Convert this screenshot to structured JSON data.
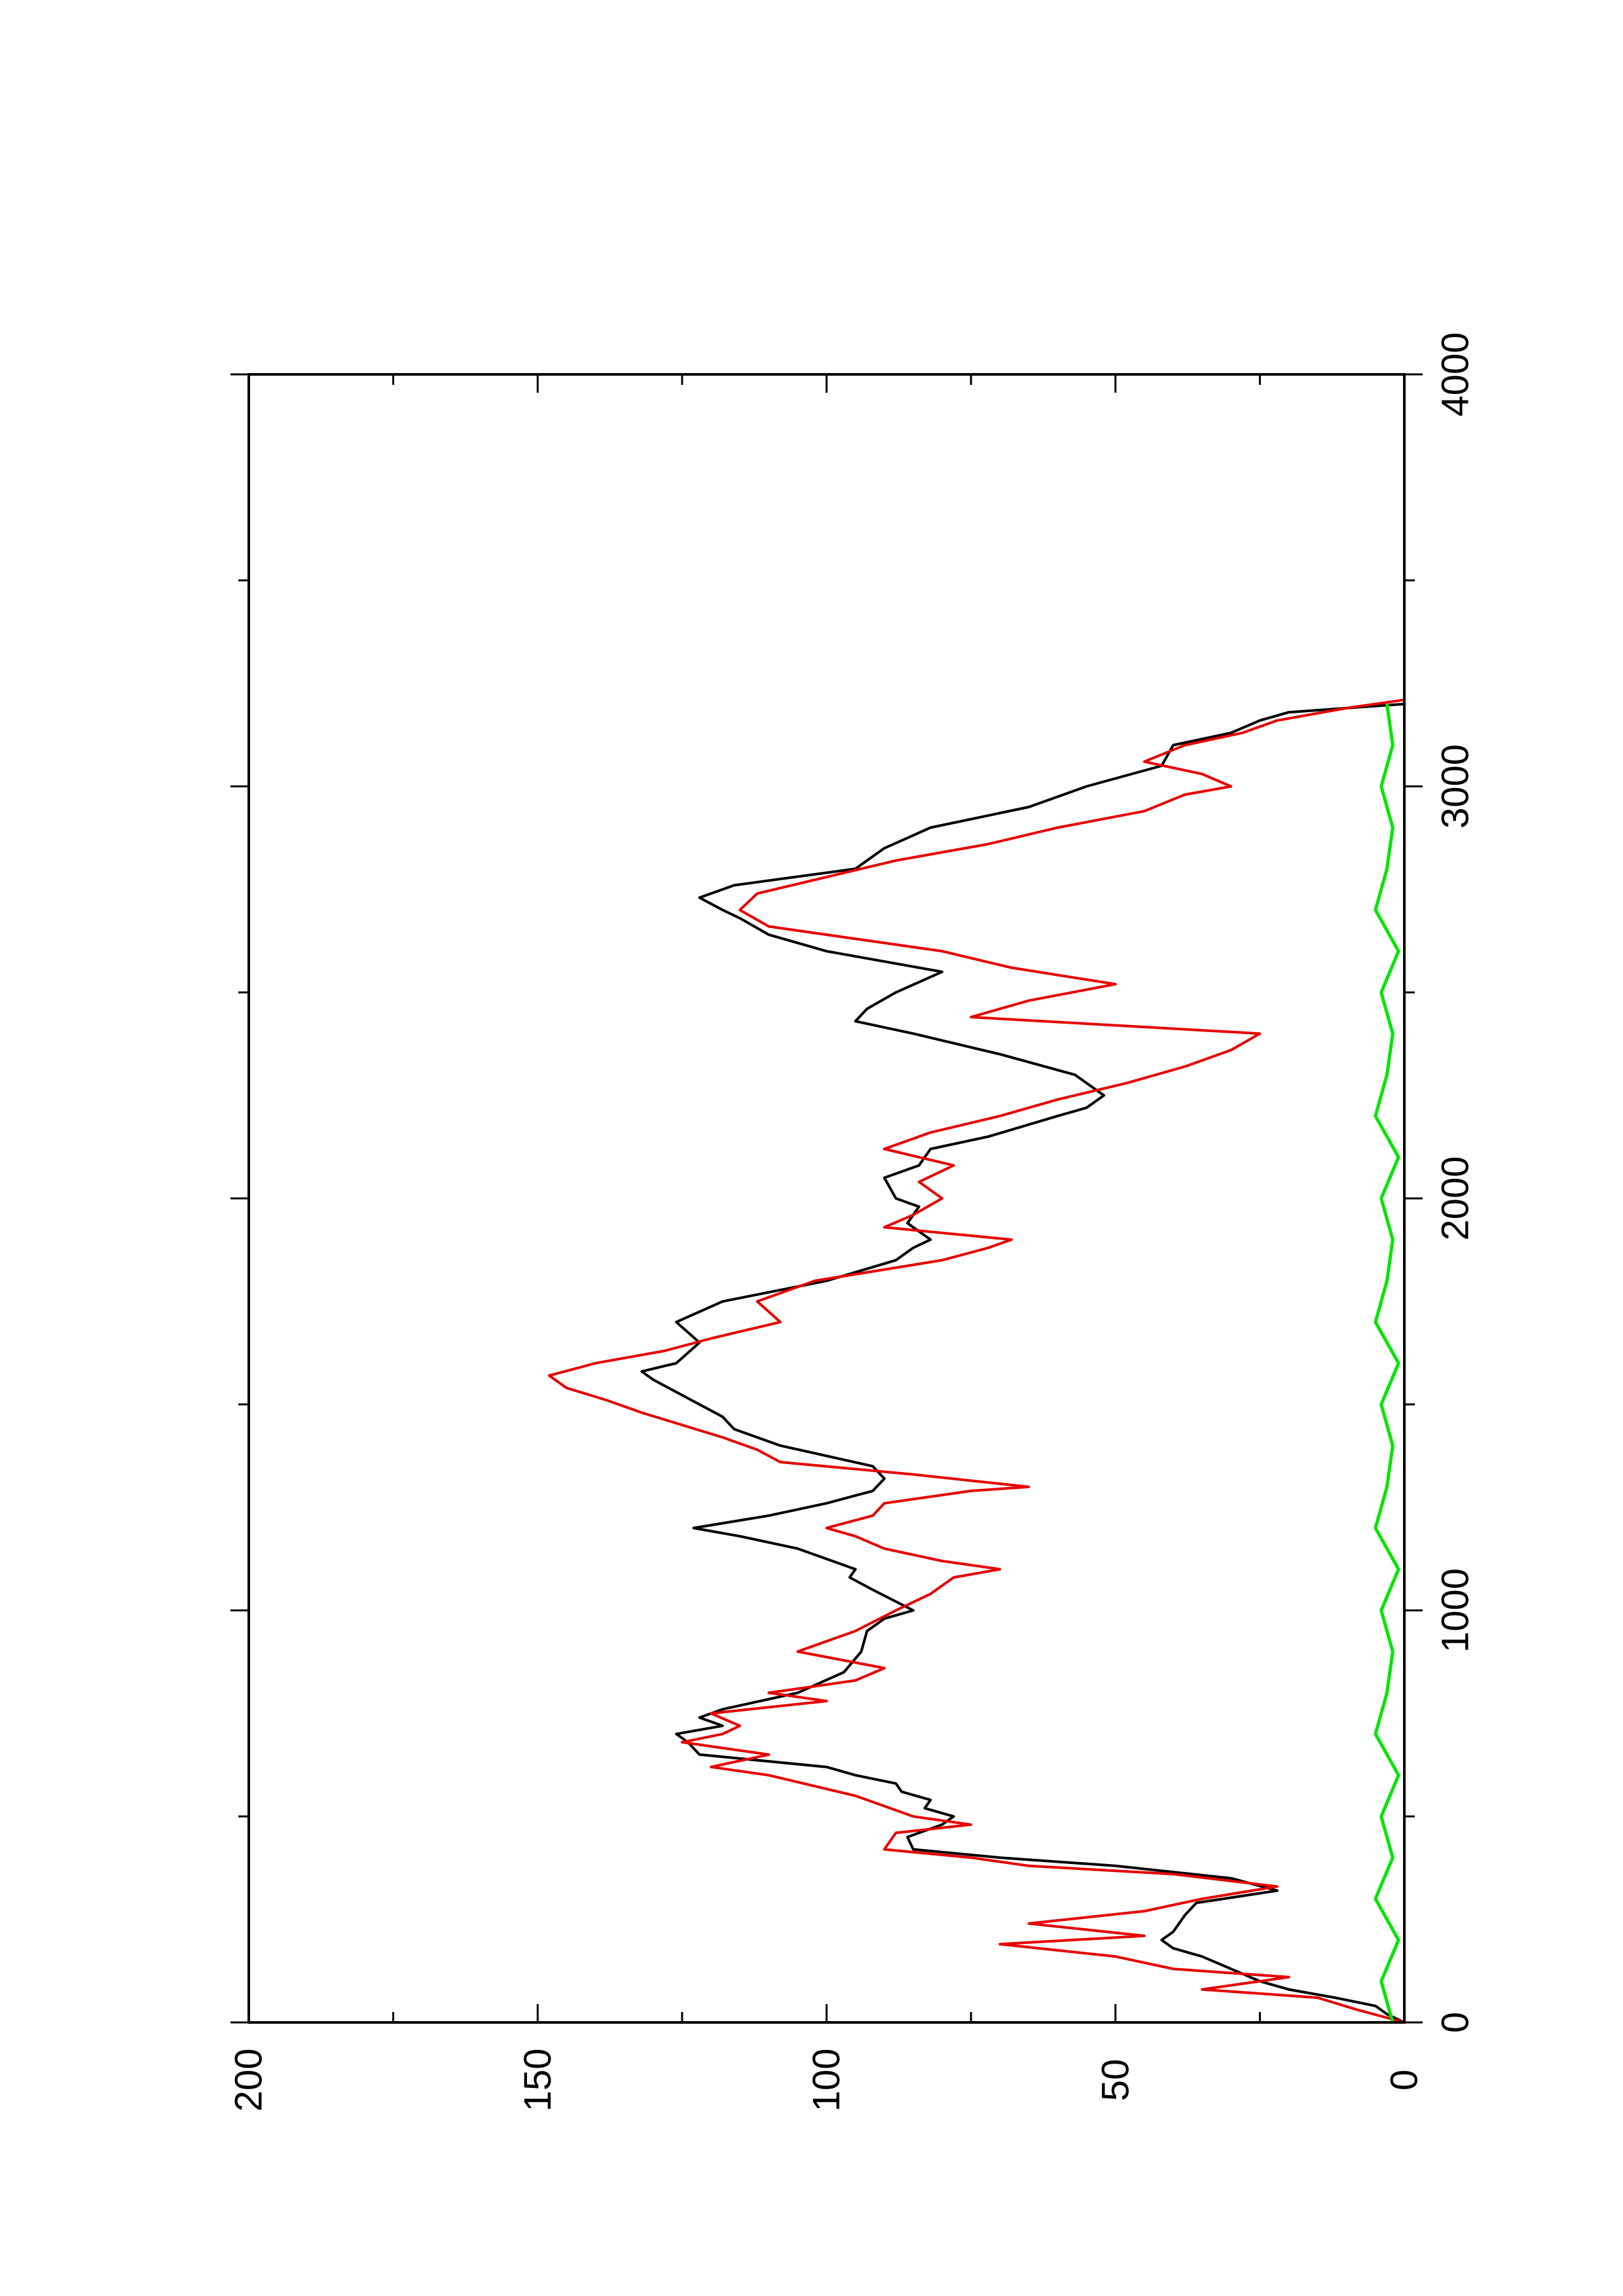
{
  "chart_data": {
    "type": "line",
    "orientation": "rotated-90-ccw",
    "title": "",
    "xlabel": "",
    "ylabel": "",
    "xlim": [
      0,
      4000
    ],
    "ylim": [
      0,
      200
    ],
    "x_ticks": [
      "0",
      "1000",
      "2000",
      "3000",
      "4000"
    ],
    "y_ticks": [
      "0",
      "50",
      "100",
      "150",
      "200"
    ],
    "x_minor_step": 500,
    "y_minor_step": 25,
    "grid": false,
    "legend": "none",
    "series": [
      {
        "color": "#000000",
        "points": [
          [
            0,
            0
          ],
          [
            20,
            3
          ],
          [
            40,
            5
          ],
          [
            60,
            12
          ],
          [
            80,
            20
          ],
          [
            100,
            25
          ],
          [
            130,
            30
          ],
          [
            160,
            35
          ],
          [
            180,
            40
          ],
          [
            200,
            42
          ],
          [
            220,
            40
          ],
          [
            260,
            38
          ],
          [
            290,
            36
          ],
          [
            320,
            22
          ],
          [
            350,
            30
          ],
          [
            380,
            50
          ],
          [
            400,
            70
          ],
          [
            420,
            85
          ],
          [
            450,
            86
          ],
          [
            480,
            80
          ],
          [
            500,
            78
          ],
          [
            520,
            83
          ],
          [
            540,
            82
          ],
          [
            560,
            87
          ],
          [
            580,
            88
          ],
          [
            600,
            95
          ],
          [
            620,
            100
          ],
          [
            650,
            122
          ],
          [
            680,
            124
          ],
          [
            700,
            126
          ],
          [
            720,
            118
          ],
          [
            740,
            122
          ],
          [
            760,
            118
          ],
          [
            800,
            105
          ],
          [
            850,
            97
          ],
          [
            900,
            94
          ],
          [
            950,
            93
          ],
          [
            980,
            90
          ],
          [
            1000,
            85
          ],
          [
            1050,
            92
          ],
          [
            1080,
            96
          ],
          [
            1100,
            95
          ],
          [
            1150,
            105
          ],
          [
            1180,
            115
          ],
          [
            1200,
            123
          ],
          [
            1230,
            110
          ],
          [
            1260,
            100
          ],
          [
            1290,
            92
          ],
          [
            1320,
            90
          ],
          [
            1350,
            92
          ],
          [
            1400,
            108
          ],
          [
            1440,
            116
          ],
          [
            1470,
            118
          ],
          [
            1500,
            122
          ],
          [
            1530,
            126
          ],
          [
            1560,
            130
          ],
          [
            1580,
            132
          ],
          [
            1600,
            126
          ],
          [
            1650,
            122
          ],
          [
            1700,
            126
          ],
          [
            1750,
            118
          ],
          [
            1800,
            100
          ],
          [
            1850,
            88
          ],
          [
            1880,
            85
          ],
          [
            1900,
            82
          ],
          [
            1940,
            86
          ],
          [
            1980,
            84
          ],
          [
            2000,
            88
          ],
          [
            2050,
            90
          ],
          [
            2080,
            84
          ],
          [
            2120,
            82
          ],
          [
            2150,
            72
          ],
          [
            2200,
            60
          ],
          [
            2220,
            55
          ],
          [
            2250,
            52
          ],
          [
            2300,
            57
          ],
          [
            2350,
            70
          ],
          [
            2400,
            85
          ],
          [
            2430,
            95
          ],
          [
            2460,
            93
          ],
          [
            2500,
            88
          ],
          [
            2550,
            80
          ],
          [
            2600,
            100
          ],
          [
            2640,
            110
          ],
          [
            2680,
            115
          ],
          [
            2700,
            118
          ],
          [
            2730,
            122
          ],
          [
            2760,
            116
          ],
          [
            2800,
            95
          ],
          [
            2850,
            90
          ],
          [
            2900,
            82
          ],
          [
            2950,
            65
          ],
          [
            3000,
            55
          ],
          [
            3050,
            42
          ],
          [
            3100,
            40
          ],
          [
            3130,
            30
          ],
          [
            3160,
            25
          ],
          [
            3180,
            20
          ],
          [
            3200,
            0
          ]
        ]
      },
      {
        "color": "#e60000",
        "points": [
          [
            0,
            0
          ],
          [
            30,
            8
          ],
          [
            60,
            15
          ],
          [
            80,
            35
          ],
          [
            110,
            20
          ],
          [
            130,
            40
          ],
          [
            160,
            50
          ],
          [
            190,
            70
          ],
          [
            210,
            45
          ],
          [
            240,
            65
          ],
          [
            270,
            45
          ],
          [
            300,
            35
          ],
          [
            330,
            22
          ],
          [
            360,
            40
          ],
          [
            380,
            65
          ],
          [
            400,
            75
          ],
          [
            420,
            90
          ],
          [
            460,
            88
          ],
          [
            480,
            75
          ],
          [
            500,
            85
          ],
          [
            550,
            95
          ],
          [
            600,
            110
          ],
          [
            620,
            120
          ],
          [
            650,
            110
          ],
          [
            680,
            125
          ],
          [
            700,
            118
          ],
          [
            720,
            115
          ],
          [
            750,
            120
          ],
          [
            780,
            100
          ],
          [
            800,
            110
          ],
          [
            830,
            95
          ],
          [
            860,
            90
          ],
          [
            900,
            105
          ],
          [
            950,
            95
          ],
          [
            1000,
            88
          ],
          [
            1040,
            82
          ],
          [
            1080,
            78
          ],
          [
            1100,
            70
          ],
          [
            1120,
            80
          ],
          [
            1150,
            90
          ],
          [
            1180,
            95
          ],
          [
            1200,
            100
          ],
          [
            1230,
            92
          ],
          [
            1260,
            90
          ],
          [
            1290,
            75
          ],
          [
            1300,
            65
          ],
          [
            1330,
            85
          ],
          [
            1360,
            108
          ],
          [
            1390,
            112
          ],
          [
            1420,
            118
          ],
          [
            1450,
            125
          ],
          [
            1480,
            132
          ],
          [
            1510,
            138
          ],
          [
            1540,
            145
          ],
          [
            1570,
            148
          ],
          [
            1600,
            140
          ],
          [
            1630,
            128
          ],
          [
            1660,
            120
          ],
          [
            1700,
            108
          ],
          [
            1750,
            112
          ],
          [
            1800,
            102
          ],
          [
            1850,
            80
          ],
          [
            1880,
            72
          ],
          [
            1900,
            68
          ],
          [
            1930,
            90
          ],
          [
            1960,
            85
          ],
          [
            2000,
            80
          ],
          [
            2040,
            84
          ],
          [
            2080,
            78
          ],
          [
            2120,
            90
          ],
          [
            2160,
            82
          ],
          [
            2200,
            70
          ],
          [
            2240,
            60
          ],
          [
            2280,
            48
          ],
          [
            2320,
            38
          ],
          [
            2360,
            30
          ],
          [
            2400,
            25
          ],
          [
            2440,
            75
          ],
          [
            2480,
            65
          ],
          [
            2520,
            50
          ],
          [
            2560,
            68
          ],
          [
            2600,
            80
          ],
          [
            2630,
            95
          ],
          [
            2660,
            110
          ],
          [
            2700,
            115
          ],
          [
            2740,
            112
          ],
          [
            2780,
            100
          ],
          [
            2820,
            88
          ],
          [
            2860,
            72
          ],
          [
            2900,
            60
          ],
          [
            2940,
            45
          ],
          [
            2980,
            38
          ],
          [
            3000,
            30
          ],
          [
            3030,
            35
          ],
          [
            3060,
            45
          ],
          [
            3100,
            38
          ],
          [
            3130,
            28
          ],
          [
            3160,
            22
          ],
          [
            3190,
            10
          ],
          [
            3210,
            0
          ]
        ]
      },
      {
        "color": "#00e600",
        "points": [
          [
            0,
            2
          ],
          [
            100,
            4
          ],
          [
            200,
            1
          ],
          [
            300,
            5
          ],
          [
            400,
            2
          ],
          [
            500,
            4
          ],
          [
            600,
            1
          ],
          [
            700,
            5
          ],
          [
            800,
            3
          ],
          [
            900,
            2
          ],
          [
            1000,
            4
          ],
          [
            1100,
            1
          ],
          [
            1200,
            5
          ],
          [
            1300,
            3
          ],
          [
            1400,
            2
          ],
          [
            1500,
            4
          ],
          [
            1600,
            1
          ],
          [
            1700,
            5
          ],
          [
            1800,
            3
          ],
          [
            1900,
            2
          ],
          [
            2000,
            4
          ],
          [
            2100,
            1
          ],
          [
            2200,
            5
          ],
          [
            2300,
            3
          ],
          [
            2400,
            2
          ],
          [
            2500,
            4
          ],
          [
            2600,
            1
          ],
          [
            2700,
            5
          ],
          [
            2800,
            3
          ],
          [
            2900,
            2
          ],
          [
            3000,
            4
          ],
          [
            3100,
            2
          ],
          [
            3200,
            3
          ]
        ]
      }
    ]
  }
}
